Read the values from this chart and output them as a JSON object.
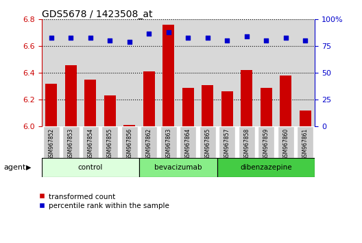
{
  "title": "GDS5678 / 1423508_at",
  "samples": [
    "GSM967852",
    "GSM967853",
    "GSM967854",
    "GSM967855",
    "GSM967856",
    "GSM967862",
    "GSM967863",
    "GSM967864",
    "GSM967865",
    "GSM967857",
    "GSM967858",
    "GSM967859",
    "GSM967860",
    "GSM967861"
  ],
  "transformed_count": [
    6.32,
    6.46,
    6.35,
    6.23,
    6.01,
    6.41,
    6.76,
    6.29,
    6.31,
    6.26,
    6.42,
    6.29,
    6.38,
    6.12
  ],
  "percentile_rank": [
    83,
    83,
    83,
    80,
    79,
    87,
    88,
    83,
    83,
    80,
    84,
    80,
    83,
    80
  ],
  "groups": [
    {
      "name": "control",
      "start": 0,
      "end": 5,
      "color": "#ddffdd"
    },
    {
      "name": "bevacizumab",
      "start": 5,
      "end": 9,
      "color": "#88ee88"
    },
    {
      "name": "dibenzazepine",
      "start": 9,
      "end": 14,
      "color": "#44cc44"
    }
  ],
  "ylim_left": [
    6.0,
    6.8
  ],
  "ylim_right": [
    0,
    100
  ],
  "yticks_left": [
    6.0,
    6.2,
    6.4,
    6.6,
    6.8
  ],
  "yticks_right": [
    0,
    25,
    50,
    75,
    100
  ],
  "bar_color": "#cc0000",
  "dot_color": "#0000cc",
  "plot_bg_color": "#d8d8d8",
  "sample_box_color": "#cccccc",
  "legend_bar_label": "transformed count",
  "legend_dot_label": "percentile rank within the sample",
  "agent_label": "agent",
  "left_color": "#cc0000",
  "right_color": "#0000cc",
  "white_bg": "#ffffff"
}
